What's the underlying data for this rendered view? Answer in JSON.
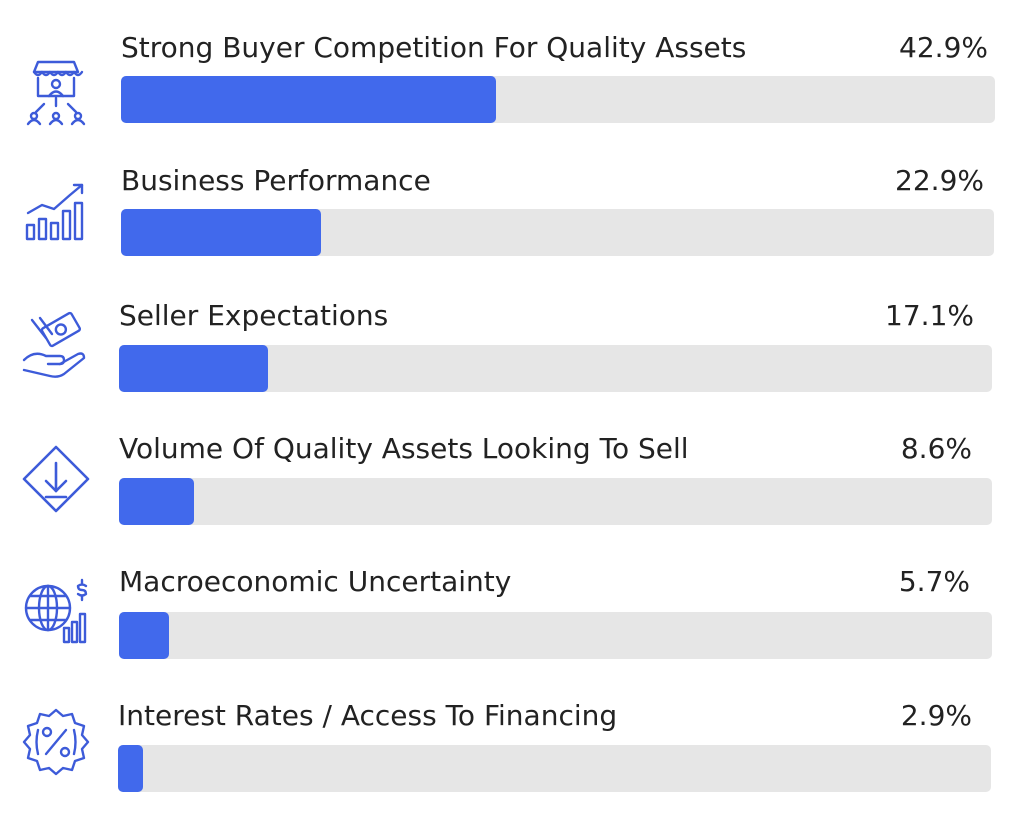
{
  "chart_data": {
    "type": "bar",
    "orientation": "horizontal",
    "categories": [
      "Strong Buyer Competition For Quality Assets",
      "Business Performance",
      "Seller Expectations",
      "Volume Of Quality Assets Looking To Sell",
      "Macroeconomic Uncertainty",
      "Interest Rates / Access To Financing"
    ],
    "values": [
      42.9,
      22.9,
      17.1,
      8.6,
      5.7,
      2.9
    ],
    "value_labels": [
      "42.9%",
      "22.9%",
      "17.1%",
      "8.6%",
      "5.7%",
      "2.9%"
    ],
    "xlim": [
      0,
      100
    ],
    "icons": [
      "marketplace-buyers-icon",
      "growth-chart-icon",
      "hand-money-icon",
      "diamond-down-arrow-icon",
      "globe-dollar-chart-icon",
      "percent-badge-icon"
    ],
    "colors": {
      "bar": "#4169ec",
      "track": "#e6e6e6",
      "icon": "#3d5bd9",
      "text": "#222222"
    },
    "grid": false,
    "legend": "none"
  }
}
